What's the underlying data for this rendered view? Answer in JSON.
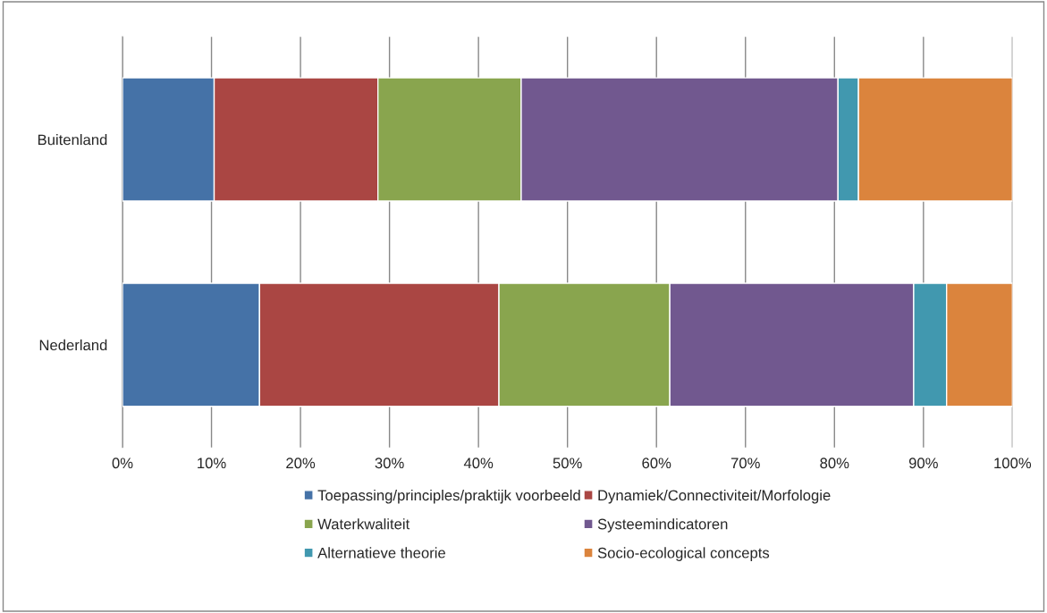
{
  "chart_data": {
    "type": "bar",
    "orientation": "horizontal",
    "stacked": true,
    "categories": [
      "Buitenland",
      "Nederland"
    ],
    "series": [
      {
        "name": "Toepassing/principles/praktijk voorbeeld",
        "color": "#4572a7",
        "values": [
          10.3,
          15.4
        ]
      },
      {
        "name": "Dynamiek/Connectiviteit/Morfologie",
        "color": "#aa4643",
        "values": [
          18.4,
          26.9
        ]
      },
      {
        "name": "Waterkwaliteit",
        "color": "#89a54e",
        "values": [
          16.1,
          19.2
        ]
      },
      {
        "name": "Systeemindicatoren",
        "color": "#71588f",
        "values": [
          35.6,
          27.4
        ]
      },
      {
        "name": "Alternatieve theorie",
        "color": "#4198af",
        "values": [
          2.3,
          3.7
        ]
      },
      {
        "name": "Socio-ecological concepts",
        "color": "#db843d",
        "values": [
          17.3,
          7.4
        ]
      }
    ],
    "xlim": [
      0,
      100
    ],
    "xticks": [
      {
        "value": 0,
        "label": "0%"
      },
      {
        "value": 10,
        "label": "10%"
      },
      {
        "value": 20,
        "label": "20%"
      },
      {
        "value": 30,
        "label": "30%"
      },
      {
        "value": 40,
        "label": "40%"
      },
      {
        "value": 50,
        "label": "50%"
      },
      {
        "value": 60,
        "label": "60%"
      },
      {
        "value": 70,
        "label": "70%"
      },
      {
        "value": 80,
        "label": "80%"
      },
      {
        "value": 90,
        "label": "90%"
      },
      {
        "value": 100,
        "label": "100%"
      }
    ],
    "grid": "x",
    "legend": "bottom"
  }
}
